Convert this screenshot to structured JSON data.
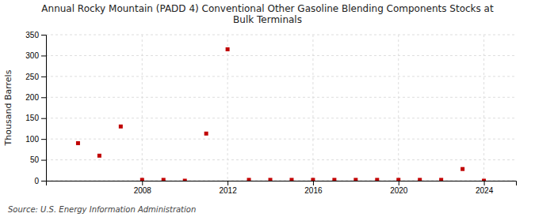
{
  "chart_data": {
    "type": "scatter",
    "title": "Annual Rocky Mountain (PADD 4) Conventional Other Gasoline Blending Components Stocks at\nBulk Terminals",
    "y_label": "Thousand Barrels",
    "annotations": [
      "Source: U.S. Energy Information Administration"
    ],
    "x": [
      2005,
      2006,
      2007,
      2008,
      2009,
      2010,
      2011,
      2012,
      2013,
      2014,
      2015,
      2016,
      2017,
      2018,
      2019,
      2020,
      2021,
      2022,
      2023,
      2024
    ],
    "values": [
      90,
      60,
      130,
      2,
      2,
      0,
      113,
      315,
      2,
      2,
      2,
      2,
      2,
      2,
      2,
      2,
      2,
      2,
      28,
      0
    ],
    "color": "#c00000",
    "marker": "square",
    "xlim": [
      2003.5,
      2025.5
    ],
    "xticks": [
      2008,
      2012,
      2016,
      2020,
      2024
    ],
    "ylim": [
      0,
      350
    ],
    "yticks": [
      0,
      50,
      100,
      150,
      200,
      250,
      300,
      350
    ],
    "grid": true
  }
}
